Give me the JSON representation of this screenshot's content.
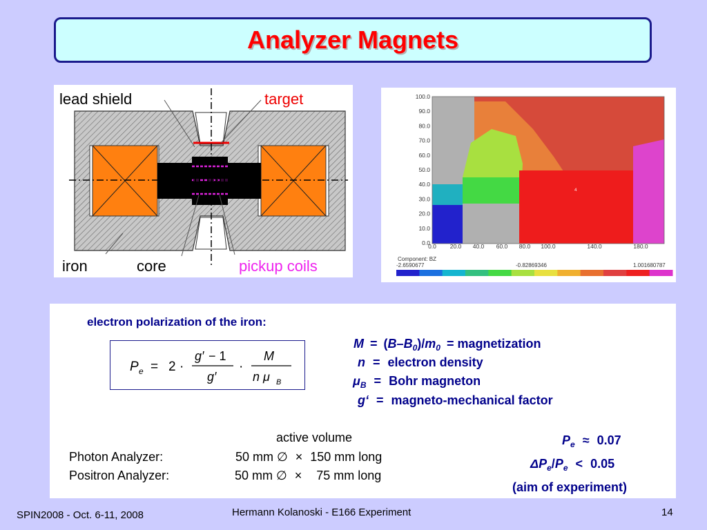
{
  "slide": {
    "title": "Analyzer Magnets",
    "footer_left": "SPIN2008 - Oct. 6-11, 2008",
    "footer_center": "Hermann Kolanoski - E166 Experiment",
    "page_number": "14"
  },
  "magnet_diagram": {
    "labels": {
      "lead_shield": "lead shield",
      "target": "target",
      "iron": "iron",
      "core": "core",
      "pickup_coils": "pickup coils"
    }
  },
  "field_map": {
    "y_ticks": [
      "100.0",
      "90.0",
      "80.0",
      "70.0",
      "60.0",
      "50.0",
      "40.0",
      "30.0",
      "20.0",
      "10.0",
      "0.0"
    ],
    "x_ticks": [
      "0.0",
      "20.0",
      "40.0",
      "60.0",
      "80.0",
      "100.0",
      "140.0",
      "180.0"
    ],
    "component_label": "Component: BZ",
    "scale_min": "-2.6590677",
    "scale_mid": "-0.82869346",
    "scale_max": "1.001680787",
    "marker": "4",
    "scale_colors": [
      "#2222cc",
      "#1b70e0",
      "#14b5d0",
      "#33c080",
      "#44d944",
      "#a8e040",
      "#e8e040",
      "#f0b030",
      "#e87030",
      "#e04040",
      "#ee2020",
      "#dd33cc"
    ]
  },
  "content": {
    "heading": "electron polarization of the iron:",
    "definitions": [
      {
        "symbol": "M",
        "sep": "=",
        "desc": "= magnetization"
      },
      {
        "symbol": "n",
        "sep": "=",
        "desc": "electron density"
      },
      {
        "symbol": "μ",
        "sub": "B",
        "sep": "=",
        "desc": "Bohr magneton"
      },
      {
        "symbol": "g‘",
        "sep": "=",
        "desc": "magneto-mechanical factor"
      }
    ],
    "m_def": {
      "open": "(",
      "b": "B",
      "dash": "–",
      "b0": "B",
      "b0_sub": "0",
      "close": ")/",
      "m0": "m",
      "m0_sub": "0"
    },
    "active_volume": "active volume",
    "analyzers": [
      {
        "name": "Photon Analyzer:",
        "diameter": "50 mm ∅",
        "times": "×",
        "length": "150 mm long"
      },
      {
        "name": "Positron Analyzer:",
        "diameter": "50 mm ∅",
        "times": "×",
        "length": "75 mm long"
      }
    ],
    "results": {
      "pe_symbol": "P",
      "pe_sub": "e",
      "approx": "≈",
      "pe_value": "0.07",
      "dpe_delta": "Δ",
      "dpe_p": "P",
      "dpe_sub": "e",
      "dpe_slash": "/",
      "dpe_p2": "P",
      "dpe_sub2": "e",
      "lt": "<",
      "dpe_value": "0.05",
      "aim": "(aim of experiment)"
    }
  }
}
